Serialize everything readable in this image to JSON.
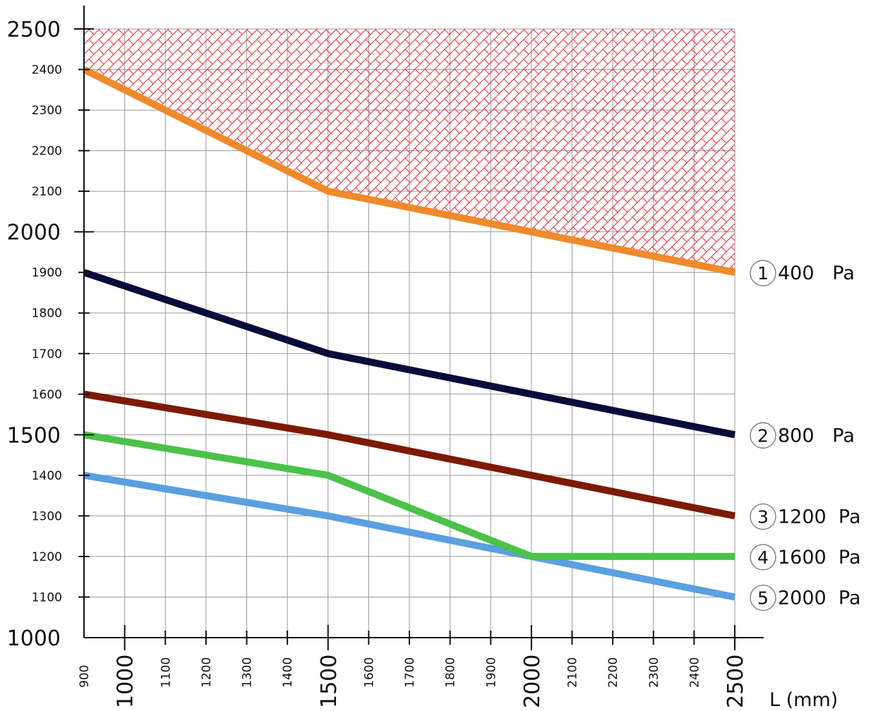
{
  "chart_data": {
    "type": "line",
    "xlabel": "L (mm)",
    "ylabel": "",
    "x": [
      900,
      1500,
      2000,
      2500
    ],
    "xlim": [
      900,
      2500
    ],
    "ylim": [
      1000,
      2500
    ],
    "x_ticks": [
      900,
      1000,
      1100,
      1200,
      1300,
      1400,
      1500,
      1600,
      1700,
      1800,
      1900,
      2000,
      2100,
      2200,
      2300,
      2400,
      2500
    ],
    "x_major_ticks": [
      1000,
      1500,
      2000,
      2500
    ],
    "y_ticks": [
      1000,
      1100,
      1200,
      1300,
      1400,
      1500,
      1600,
      1700,
      1800,
      1900,
      2000,
      2100,
      2200,
      2300,
      2400,
      2500
    ],
    "y_major_ticks": [
      1000,
      1500,
      2000,
      2500
    ],
    "grid": true,
    "hatched_region": {
      "description_color": "#e8343c",
      "above_series": 0
    },
    "series": [
      {
        "marker": "1",
        "name": "400   Pa",
        "color": "#f08a2a",
        "values": [
          2400,
          2100,
          2000,
          1900
        ]
      },
      {
        "marker": "2",
        "name": "800   Pa",
        "color": "#0b0b3a",
        "values": [
          1900,
          1700,
          1600,
          1500
        ]
      },
      {
        "marker": "3",
        "name": "1200  Pa",
        "color": "#7d1a06",
        "values": [
          1600,
          1500,
          1400,
          1300
        ]
      },
      {
        "marker": "4",
        "name": "1600  Pa",
        "color": "#4cc24a",
        "values": [
          1500,
          1400,
          1200,
          1200
        ]
      },
      {
        "marker": "5",
        "name": "2000  Pa",
        "color": "#5aa0e0",
        "values": [
          1400,
          1300,
          1200,
          1100
        ]
      }
    ]
  }
}
